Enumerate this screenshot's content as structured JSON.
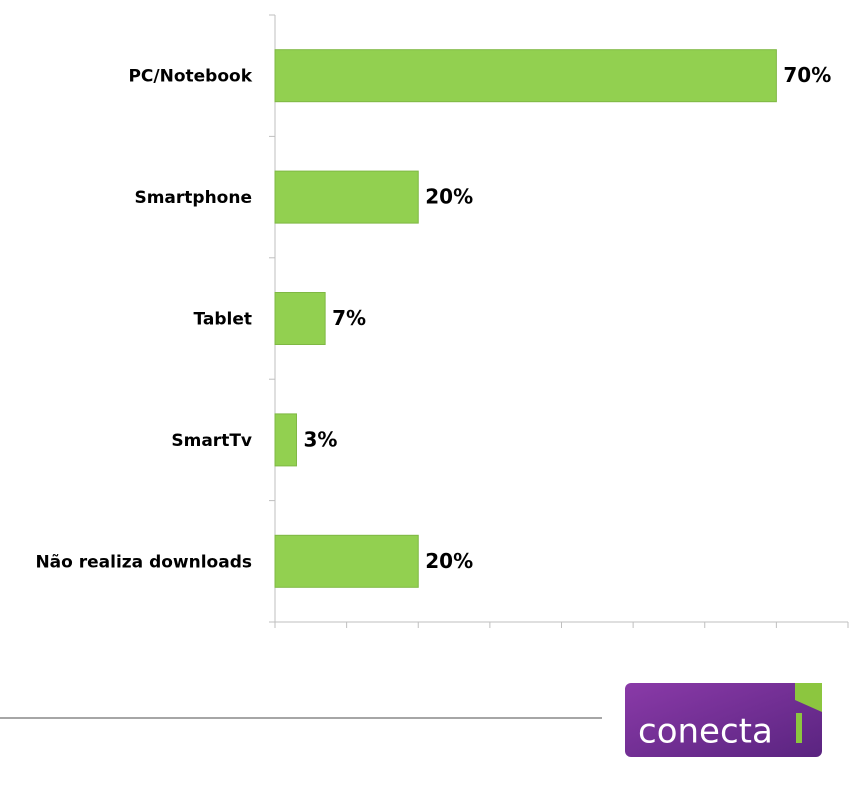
{
  "chart_data": {
    "type": "barh",
    "categories": [
      "PC/Notebook",
      "Smartphone",
      "Tablet",
      "SmartTv",
      "Não realiza downloads"
    ],
    "values": [
      70,
      20,
      7,
      3,
      20
    ],
    "value_labels": [
      "70%",
      "20%",
      "7%",
      "3%",
      "20%"
    ],
    "color": "#92d050",
    "xlim": [
      0,
      80
    ],
    "xticks": [
      0,
      10,
      20,
      30,
      40,
      50,
      60,
      70,
      80
    ]
  },
  "logo": {
    "text": "conecta"
  }
}
